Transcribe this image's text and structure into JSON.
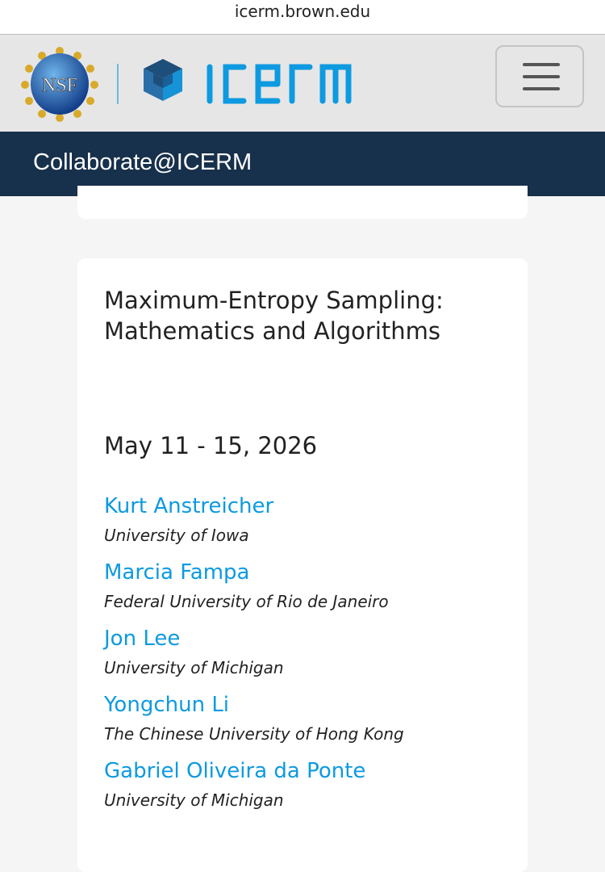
{
  "browser": {
    "url": "icerm.brown.edu"
  },
  "header": {
    "logos": [
      "NSF",
      "ICERM"
    ],
    "menu_icon": "hamburger-icon"
  },
  "nav": {
    "title": "Collaborate@ICERM"
  },
  "event": {
    "title": "Maximum-Entropy Sampling: Mathematics and Algorithms",
    "date": "May 11 - 15, 2026",
    "organizers": [
      {
        "name": "Kurt Anstreicher",
        "affiliation": "University of Iowa"
      },
      {
        "name": "Marcia Fampa",
        "affiliation": "Federal University of Rio de Janeiro"
      },
      {
        "name": "Jon Lee",
        "affiliation": "University of Michigan"
      },
      {
        "name": "Yongchun Li",
        "affiliation": "The Chinese University of Hong Kong"
      },
      {
        "name": "Gabriel Oliveira da Ponte",
        "affiliation": "University of Michigan"
      }
    ]
  },
  "colors": {
    "nav_bg": "#17304b",
    "link": "#0d9ae0",
    "header_bg": "#e6e6e6",
    "icerm_blue": "#0d9ae0"
  }
}
